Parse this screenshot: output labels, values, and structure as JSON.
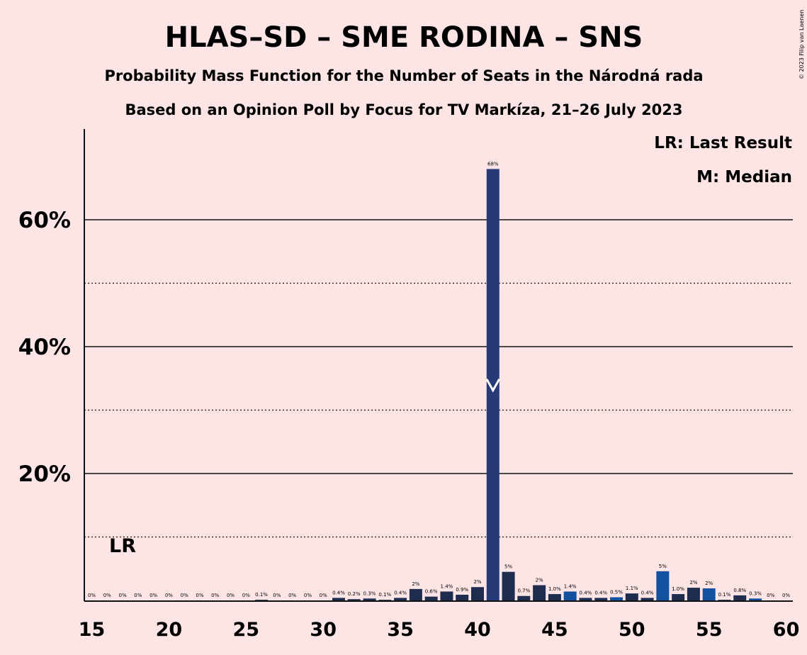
{
  "chart_data": {
    "type": "bar",
    "title": "HLAS–SD – SME RODINA – SNS",
    "subtitle": "Probability Mass Function for the Number of Seats in the Národná rada",
    "subtitle2": "Based on an Opinion Poll by Focus for TV Markíza, 21–26 July 2023",
    "copyright": "© 2023 Filip van Laenen",
    "legend": {
      "lr": "LR: Last Result",
      "median": "M: Median",
      "placement": "top-right"
    },
    "last_result_marker": "LR",
    "last_result_seats": 17,
    "median_seats": 41,
    "xlim": [
      15,
      60
    ],
    "ylim": [
      0,
      74
    ],
    "x_ticks": [
      "15",
      "20",
      "25",
      "30",
      "35",
      "40",
      "45",
      "50",
      "55",
      "60"
    ],
    "y_ticks": [
      {
        "value": 20,
        "label": "20%"
      },
      {
        "value": 40,
        "label": "40%"
      },
      {
        "value": 60,
        "label": "60%"
      }
    ],
    "y_dotted": [
      10,
      30,
      50
    ],
    "colors": {
      "background": "#fde5e5",
      "dark": "#1e2c50",
      "mid": "#263a78",
      "blue": "#1450a0"
    },
    "bars": [
      {
        "x": 15,
        "value": 0,
        "label": "0%"
      },
      {
        "x": 16,
        "value": 0,
        "label": "0%"
      },
      {
        "x": 17,
        "value": 0,
        "label": "0%"
      },
      {
        "x": 18,
        "value": 0,
        "label": "0%"
      },
      {
        "x": 19,
        "value": 0,
        "label": "0%"
      },
      {
        "x": 20,
        "value": 0,
        "label": "0%"
      },
      {
        "x": 21,
        "value": 0,
        "label": "0%"
      },
      {
        "x": 22,
        "value": 0,
        "label": "0%"
      },
      {
        "x": 23,
        "value": 0,
        "label": "0%"
      },
      {
        "x": 24,
        "value": 0,
        "label": "0%"
      },
      {
        "x": 25,
        "value": 0,
        "label": "0%"
      },
      {
        "x": 26,
        "value": 0.1,
        "label": "0.1%"
      },
      {
        "x": 27,
        "value": 0,
        "label": "0%"
      },
      {
        "x": 28,
        "value": 0,
        "label": "0%"
      },
      {
        "x": 29,
        "value": 0,
        "label": "0%"
      },
      {
        "x": 30,
        "value": 0,
        "label": "0%"
      },
      {
        "x": 31,
        "value": 0.4,
        "label": "0.4%"
      },
      {
        "x": 32,
        "value": 0.2,
        "label": "0.2%"
      },
      {
        "x": 33,
        "value": 0.3,
        "label": "0.3%"
      },
      {
        "x": 34,
        "value": 0.1,
        "label": "0.1%"
      },
      {
        "x": 35,
        "value": 0.4,
        "label": "0.4%"
      },
      {
        "x": 36,
        "value": 1.8,
        "label": "2%"
      },
      {
        "x": 37,
        "value": 0.6,
        "label": "0.6%"
      },
      {
        "x": 38,
        "value": 1.4,
        "label": "1.4%"
      },
      {
        "x": 39,
        "value": 0.9,
        "label": "0.9%"
      },
      {
        "x": 40,
        "value": 2.1,
        "label": "2%"
      },
      {
        "x": 41,
        "value": 68,
        "label": "68%"
      },
      {
        "x": 42,
        "value": 4.5,
        "label": "5%"
      },
      {
        "x": 43,
        "value": 0.7,
        "label": "0.7%"
      },
      {
        "x": 44,
        "value": 2.4,
        "label": "2%"
      },
      {
        "x": 45,
        "value": 1.0,
        "label": "1.0%"
      },
      {
        "x": 46,
        "value": 1.4,
        "label": "1.4%"
      },
      {
        "x": 47,
        "value": 0.4,
        "label": "0.4%"
      },
      {
        "x": 48,
        "value": 0.4,
        "label": "0.4%"
      },
      {
        "x": 49,
        "value": 0.5,
        "label": "0.5%"
      },
      {
        "x": 50,
        "value": 1.1,
        "label": "1.1%"
      },
      {
        "x": 51,
        "value": 0.4,
        "label": "0.4%"
      },
      {
        "x": 52,
        "value": 4.6,
        "label": "5%"
      },
      {
        "x": 53,
        "value": 1.0,
        "label": "1.0%"
      },
      {
        "x": 54,
        "value": 2.0,
        "label": "2%"
      },
      {
        "x": 55,
        "value": 1.9,
        "label": "2%"
      },
      {
        "x": 56,
        "value": 0.1,
        "label": "0.1%"
      },
      {
        "x": 57,
        "value": 0.8,
        "label": "0.8%"
      },
      {
        "x": 58,
        "value": 0.3,
        "label": "0.3%"
      },
      {
        "x": 59,
        "value": 0,
        "label": "0%"
      },
      {
        "x": 60,
        "value": 0,
        "label": "0%"
      }
    ]
  }
}
